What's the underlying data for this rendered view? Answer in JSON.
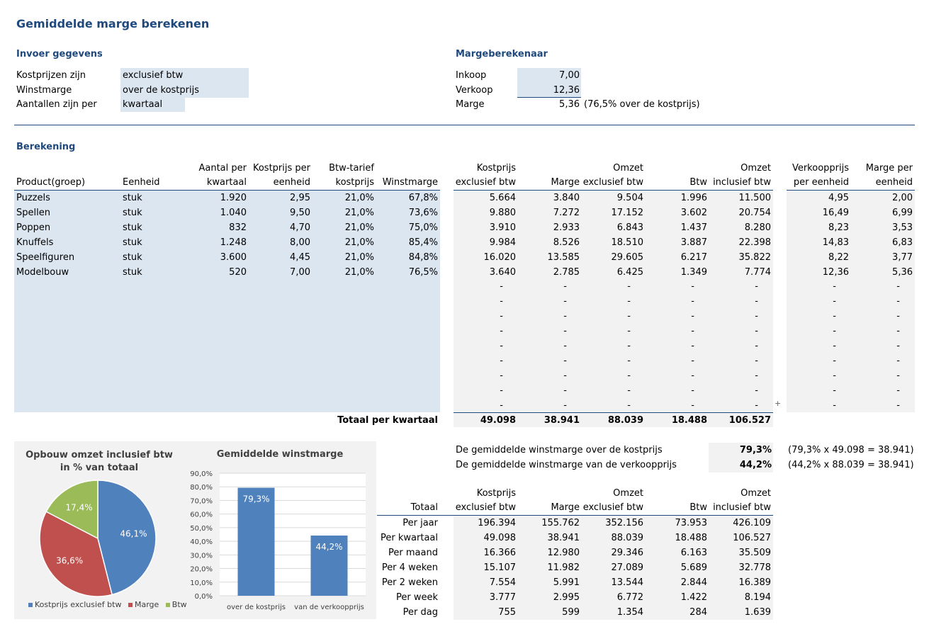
{
  "title": "Gemiddelde marge berekenen",
  "invoer": {
    "heading": "Invoer gegevens",
    "rows": [
      {
        "label": "Kostprijzen zijn",
        "value": "exclusief btw"
      },
      {
        "label": "Winstmarge",
        "value": "over de kostprijs"
      },
      {
        "label": "Aantallen zijn per",
        "value": "kwartaal"
      }
    ]
  },
  "calc": {
    "heading": "Margeberekenaar",
    "rows": [
      {
        "label": "Inkoop",
        "value": "7,00"
      },
      {
        "label": "Verkoop",
        "value": "12,36"
      },
      {
        "label": "Marge",
        "value": "5,36",
        "note": "(76,5% over de kostprijs)"
      }
    ]
  },
  "berekening": {
    "heading": "Berekening",
    "headers": {
      "product": "Product(groep)",
      "eenheid": "Eenheid",
      "aantal": [
        "Aantal per",
        "kwartaal"
      ],
      "kostprijs": [
        "Kostprijs per",
        "eenheid"
      ],
      "btwtarief": [
        "Btw-tarief",
        "kostprijs"
      ],
      "winstmarge": "Winstmarge",
      "kostexcl": [
        "Kostprijs",
        "exclusief btw"
      ],
      "marge": "Marge",
      "omzetexcl": [
        "Omzet",
        "exclusief btw"
      ],
      "btw": "Btw",
      "omzetincl": [
        "Omzet",
        "inclusief btw"
      ],
      "vkp": [
        "Verkoopprijs",
        "per eenheid"
      ],
      "margeper": [
        "Marge per",
        "eenheid"
      ]
    },
    "rows": [
      [
        "Puzzels",
        "stuk",
        "1.920",
        "2,95",
        "21,0%",
        "67,8%",
        "5.664",
        "3.840",
        "9.504",
        "1.996",
        "11.500",
        "4,95",
        "2,00"
      ],
      [
        "Spellen",
        "stuk",
        "1.040",
        "9,50",
        "21,0%",
        "73,6%",
        "9.880",
        "7.272",
        "17.152",
        "3.602",
        "20.754",
        "16,49",
        "6,99"
      ],
      [
        "Poppen",
        "stuk",
        "832",
        "4,70",
        "21,0%",
        "75,0%",
        "3.910",
        "2.933",
        "6.843",
        "1.437",
        "8.280",
        "8,23",
        "3,53"
      ],
      [
        "Knuffels",
        "stuk",
        "1.248",
        "8,00",
        "21,0%",
        "85,4%",
        "9.984",
        "8.526",
        "18.510",
        "3.887",
        "22.398",
        "14,83",
        "6,83"
      ],
      [
        "Speelfiguren",
        "stuk",
        "3.600",
        "4,45",
        "21,0%",
        "84,8%",
        "16.020",
        "13.585",
        "29.605",
        "6.217",
        "35.822",
        "8,22",
        "3,77"
      ],
      [
        "Modelbouw",
        "stuk",
        "520",
        "7,00",
        "21,0%",
        "76,5%",
        "3.640",
        "2.785",
        "6.425",
        "1.349",
        "7.774",
        "12,36",
        "5,36"
      ]
    ],
    "dash": "-",
    "plus": "+",
    "total": {
      "label": "Totaal per kwartaal",
      "values": [
        "49.098",
        "38.941",
        "88.039",
        "18.488",
        "106.527"
      ]
    }
  },
  "gemiddeld": [
    {
      "label": "De gemiddelde winstmarge over de kostprijs",
      "value": "79,3%",
      "note": "(79,3% x 49.098 = 38.941)"
    },
    {
      "label": "De gemiddelde winstmarge van de verkoopprijs",
      "value": "44,2%",
      "note": "(44,2% x 88.039 = 38.941)"
    }
  ],
  "totaal": {
    "corner": "Totaal",
    "headers": [
      [
        "Kostprijs",
        "exclusief btw"
      ],
      [
        "",
        "Marge"
      ],
      [
        "Omzet",
        "exclusief btw"
      ],
      [
        "",
        "Btw"
      ],
      [
        "Omzet",
        "inclusief btw"
      ]
    ],
    "rows": [
      [
        "Per jaar",
        "196.394",
        "155.762",
        "352.156",
        "73.953",
        "426.109"
      ],
      [
        "Per kwartaal",
        "49.098",
        "38.941",
        "88.039",
        "18.488",
        "106.527"
      ],
      [
        "Per maand",
        "16.366",
        "12.980",
        "29.346",
        "6.163",
        "35.509"
      ],
      [
        "Per 4 weken",
        "15.107",
        "11.982",
        "27.089",
        "5.689",
        "32.778"
      ],
      [
        "Per 2 weken",
        "7.554",
        "5.991",
        "13.544",
        "2.844",
        "16.389"
      ],
      [
        "Per week",
        "3.777",
        "2.995",
        "6.772",
        "1.422",
        "8.194"
      ],
      [
        "Per dag",
        "755",
        "599",
        "1.354",
        "284",
        "1.639"
      ]
    ]
  },
  "colors": {
    "blue": "#4f81bd",
    "red": "#c0504d",
    "green": "#9bbb59",
    "accent": "#1f497d"
  },
  "chart_data": [
    {
      "type": "pie",
      "title": "Opbouw omzet inclusief btw in % van totaal",
      "title_lines": [
        "Opbouw omzet inclusief btw",
        "in % van totaal"
      ],
      "categories": [
        "Kostprijs exclusief btw",
        "Marge",
        "Btw"
      ],
      "values": [
        46.1,
        36.6,
        17.4
      ],
      "labels": [
        "46,1%",
        "36,6%",
        "17,4%"
      ],
      "legend": "bottom"
    },
    {
      "type": "bar",
      "title": "Gemiddelde winstmarge",
      "categories": [
        "over de kostprijs",
        "van de verkoopprijs"
      ],
      "values": [
        79.3,
        44.2
      ],
      "labels": [
        "79,3%",
        "44,2%"
      ],
      "ylim": [
        0,
        90
      ],
      "yticks": [
        "0,0%",
        "10,0%",
        "20,0%",
        "30,0%",
        "40,0%",
        "50,0%",
        "60,0%",
        "70,0%",
        "80,0%",
        "90,0%"
      ],
      "grid": true
    }
  ]
}
